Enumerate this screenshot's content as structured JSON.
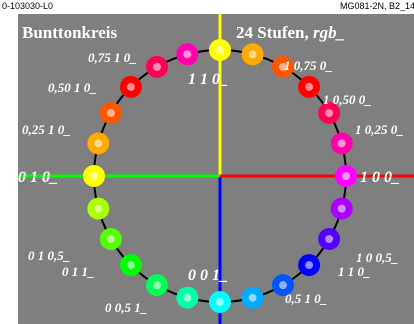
{
  "header": {
    "code_left": "0-103030-L0",
    "code_right": "MG081-2N, B2_14"
  },
  "title": "Bunttonkreis",
  "subtitle": {
    "text": "24 Stufen,",
    "italic": "rgb_"
  },
  "labels": [
    "0,75 1 0_",
    "0,50 1 0_",
    "0,25 1 0_",
    "0 1 0_",
    "0 1 0,5_",
    "0 1 1_",
    "0 0,5 1_",
    "0 0 1_",
    "1 1 0_",
    "1 0,75 0_",
    "1 0,50 0_",
    "1 0,25 0_",
    "1 0 0_",
    "1 0 0,5_",
    "1 1 0_",
    "0,5 1 0_"
  ]
}
